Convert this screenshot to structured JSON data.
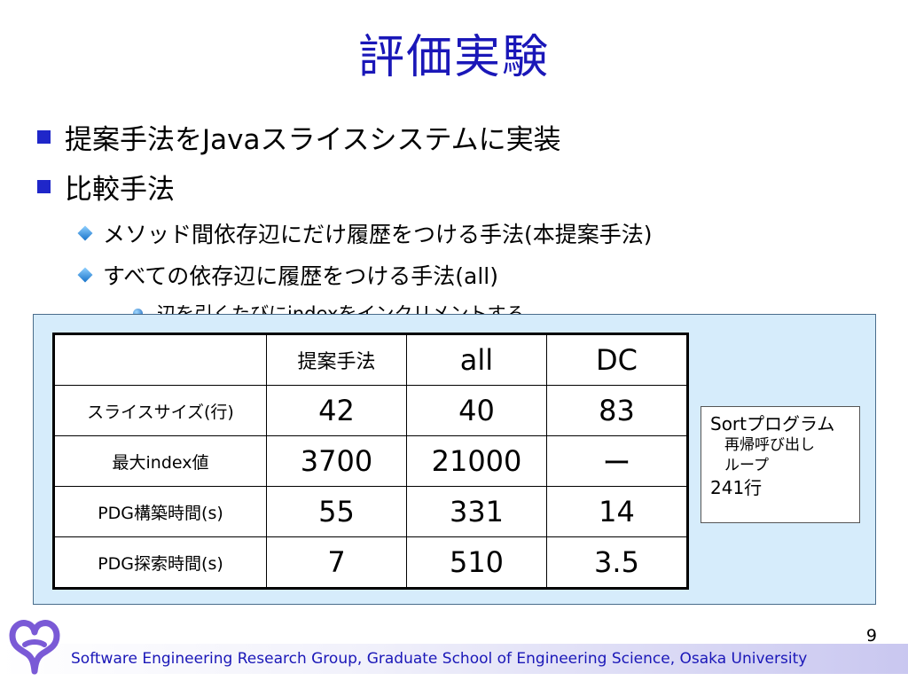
{
  "title": "評価実験",
  "bullets": {
    "b1": "提案手法をJavaスライスシステムに実装",
    "b2": "比較手法",
    "b2_1": "メソッド間依存辺にだけ履歴をつける手法(本提案手法)",
    "b2_2": "すべての依存辺に履歴をつける手法(all)",
    "b2_2_1": "辺を引くたびにindexをインクリメントする"
  },
  "table": {
    "headers": [
      "",
      "提案手法",
      "all",
      "DC"
    ],
    "rows": [
      {
        "label": "スライスサイズ(行)",
        "values": [
          "42",
          "40",
          "83"
        ]
      },
      {
        "label": "最大index値",
        "values": [
          "3700",
          "21000",
          "ー"
        ]
      },
      {
        "label": "PDG構築時間(s)",
        "values": [
          "55",
          "331",
          "14"
        ]
      },
      {
        "label": "PDG探索時間(s)",
        "values": [
          "7",
          "510",
          "3.5"
        ]
      }
    ]
  },
  "sortbox": {
    "line1": "Sortプログラム",
    "line2": "再帰呼び出し",
    "line3": "ループ",
    "line4": "241行"
  },
  "footer": "Software Engineering Research Group, Graduate School of Engineering Science, Osaka University",
  "page_number": "9",
  "colors": {
    "title": "#1a17b8",
    "bullet": "#1f26c9",
    "panel": "#d6ecfb"
  }
}
